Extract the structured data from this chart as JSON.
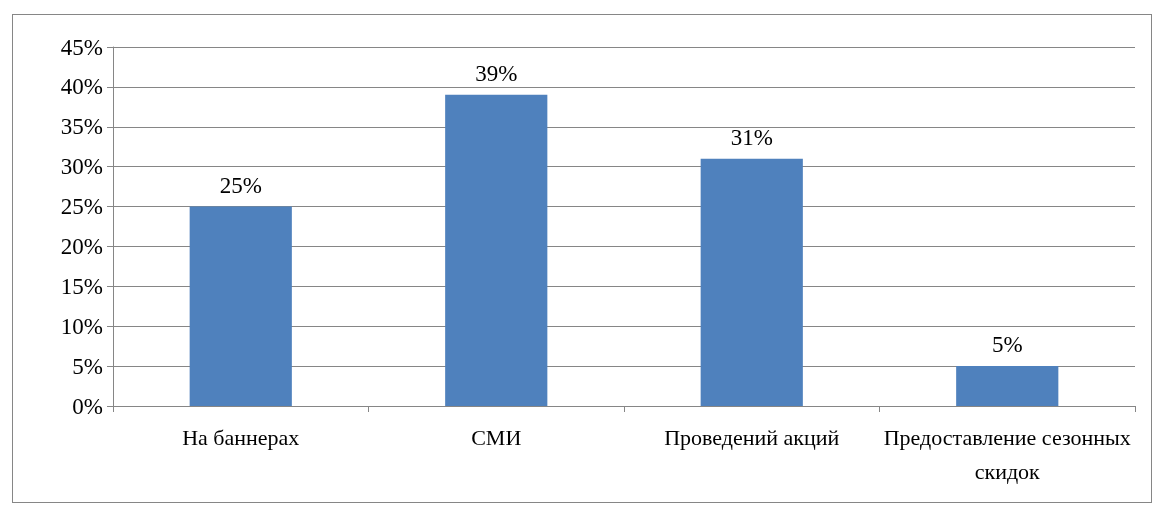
{
  "chart_data": {
    "type": "bar",
    "categories": [
      "На баннерах",
      "СМИ",
      "Проведений акций",
      "Предоставление сезонных скидок"
    ],
    "values": [
      25,
      39,
      31,
      5
    ],
    "color": "#4f81bd",
    "value_labels": [
      "25%",
      "39%",
      "31%",
      "5%"
    ],
    "ylim": [
      0,
      45
    ],
    "yticks": [
      {
        "value": 0,
        "label": "0%"
      },
      {
        "value": 5,
        "label": "5%"
      },
      {
        "value": 10,
        "label": "10%"
      },
      {
        "value": 15,
        "label": "15%"
      },
      {
        "value": 20,
        "label": "20%"
      },
      {
        "value": 25,
        "label": "25%"
      },
      {
        "value": 30,
        "label": "30%"
      },
      {
        "value": 35,
        "label": "35%"
      },
      {
        "value": 40,
        "label": "40%"
      },
      {
        "value": 45,
        "label": "45%"
      }
    ],
    "grid": "y"
  }
}
